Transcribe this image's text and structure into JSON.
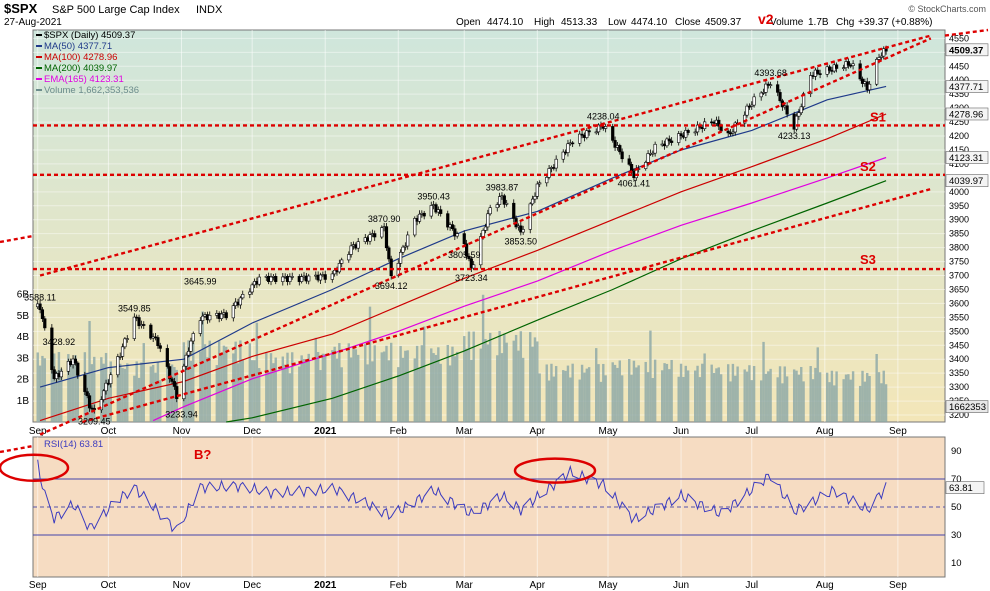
{
  "header": {
    "symbol": "$SPX",
    "name": "S&P 500 Large Cap Index",
    "exchange": "INDX",
    "date": "27-Aug-2021",
    "open_label": "Open",
    "open": "4474.10",
    "high_label": "High",
    "high": "4513.33",
    "low_label": "Low",
    "low": "4474.10",
    "close_label": "Close",
    "close": "4509.37",
    "volume_label": "Volume",
    "volume": "1.7B",
    "chg_label": "Chg",
    "chg": "+39.37 (+0.88%)",
    "watermark": "© StockCharts.com"
  },
  "legend": [
    {
      "text": "$SPX (Daily) 4509.37",
      "color": "#000000"
    },
    {
      "text": "MA(50) 4377.71",
      "color": "#1f3a8a"
    },
    {
      "text": "MA(100) 4278.96",
      "color": "#cc0000"
    },
    {
      "text": "MA(200) 4039.97",
      "color": "#006400"
    },
    {
      "text": "EMA(165) 4123.31",
      "color": "#e000e0"
    },
    {
      "text": "Volume 1,662,353,536",
      "color": "#6c8c8c"
    }
  ],
  "rsi_legend": "RSI(14) 63.81",
  "annotations": {
    "wave": "v2",
    "s1": "S1",
    "s2": "S2",
    "s3": "S3",
    "b": "B?"
  },
  "colors": {
    "price_bg": "#dfe8cf",
    "rsi_bg": "#f6dcc2",
    "support_line": "#dd0000",
    "volume": "#8aa6a6",
    "rsi_line": "#3b3bbf"
  },
  "chart_data": [
    {
      "type": "candlestick",
      "title": "$SPX S&P 500 Large Cap Index",
      "x_months": [
        "Sep",
        "Oct",
        "Nov",
        "Dec",
        "2021",
        "Feb",
        "Mar",
        "Apr",
        "May",
        "Jun",
        "Jul",
        "Aug",
        "Sep"
      ],
      "y_ticks": [
        3200,
        3250,
        3300,
        3350,
        3400,
        3450,
        3500,
        3550,
        3600,
        3650,
        3700,
        3750,
        3800,
        3850,
        3900,
        3950,
        4000,
        4050,
        4100,
        4150,
        4200,
        4250,
        4300,
        4350,
        4400,
        4450,
        4500,
        4550
      ],
      "ylim": [
        3175,
        4580
      ],
      "price_path": [
        [
          "2020-09-02",
          3588
        ],
        [
          "2020-09-08",
          3330
        ],
        [
          "2020-09-16",
          3400
        ],
        [
          "2020-09-23",
          3236
        ],
        [
          "2020-09-25",
          3209
        ],
        [
          "2020-10-05",
          3400
        ],
        [
          "2020-10-12",
          3549
        ],
        [
          "2020-10-22",
          3460
        ],
        [
          "2020-10-30",
          3270
        ],
        [
          "2020-11-04",
          3440
        ],
        [
          "2020-11-09",
          3550
        ],
        [
          "2020-11-20",
          3560
        ],
        [
          "2020-12-04",
          3690
        ],
        [
          "2020-12-21",
          3690
        ],
        [
          "2021-01-04",
          3700
        ],
        [
          "2021-01-12",
          3800
        ],
        [
          "2021-01-26",
          3870
        ],
        [
          "2021-01-29",
          3694
        ],
        [
          "2021-02-08",
          3900
        ],
        [
          "2021-02-16",
          3950
        ],
        [
          "2021-03-01",
          3810
        ],
        [
          "2021-03-04",
          3723
        ],
        [
          "2021-03-12",
          3940
        ],
        [
          "2021-03-17",
          3983
        ],
        [
          "2021-03-25",
          3853
        ],
        [
          "2021-04-01",
          4019
        ],
        [
          "2021-04-16",
          4185
        ],
        [
          "2021-04-29",
          4238
        ],
        [
          "2021-05-12",
          4061
        ],
        [
          "2021-05-21",
          4160
        ],
        [
          "2021-06-15",
          4255
        ],
        [
          "2021-06-21",
          4200
        ],
        [
          "2021-07-01",
          4320
        ],
        [
          "2021-07-09",
          4393
        ],
        [
          "2021-07-19",
          4233
        ],
        [
          "2021-07-26",
          4420
        ],
        [
          "2021-08-12",
          4460
        ],
        [
          "2021-08-19",
          4370
        ],
        [
          "2021-08-24",
          4486
        ],
        [
          "2021-08-27",
          4509
        ]
      ],
      "labels": [
        {
          "date": "2020-09-02",
          "value": "3588.11"
        },
        {
          "date": "2020-09-25",
          "value": "3209.45"
        },
        {
          "date": "2020-09-10",
          "value": "3428.92"
        },
        {
          "date": "2020-10-12",
          "value": "3549.85"
        },
        {
          "date": "2020-11-01",
          "value": "3233.94"
        },
        {
          "date": "2020-11-09",
          "value": "3645.99"
        },
        {
          "date": "2021-01-29",
          "value": "3694.12"
        },
        {
          "date": "2021-01-26",
          "value": "3870.90"
        },
        {
          "date": "2021-02-16",
          "value": "3950.43"
        },
        {
          "date": "2021-03-01",
          "value": "3805.59"
        },
        {
          "date": "2021-03-04",
          "value": "3723.34"
        },
        {
          "date": "2021-03-17",
          "value": "3983.87"
        },
        {
          "date": "2021-03-25",
          "value": "3853.50"
        },
        {
          "date": "2021-04-29",
          "value": "4238.04"
        },
        {
          "date": "2021-05-12",
          "value": "4061.41"
        },
        {
          "date": "2021-07-09",
          "value": "4393.68"
        },
        {
          "date": "2021-07-19",
          "value": "4233.13"
        }
      ],
      "price_axis_tags": [
        {
          "value": "4509.37",
          "y": 4509
        },
        {
          "value": "4377.71",
          "y": 4377
        },
        {
          "value": "4278.96",
          "y": 4279
        },
        {
          "value": "4123.31",
          "y": 4123
        },
        {
          "value": "4039.97",
          "y": 4040
        },
        {
          "value": "1662353",
          "y": 3230
        }
      ],
      "moving_averages": [
        {
          "name": "MA(50)",
          "color": "#1f3a8a",
          "points": [
            [
              "2020-09-02",
              3300
            ],
            [
              "2020-10-01",
              3370
            ],
            [
              "2020-11-02",
              3400
            ],
            [
              "2020-12-01",
              3530
            ],
            [
              "2021-01-04",
              3650
            ],
            [
              "2021-02-01",
              3760
            ],
            [
              "2021-03-01",
              3860
            ],
            [
              "2021-04-01",
              3930
            ],
            [
              "2021-05-03",
              4050
            ],
            [
              "2021-06-01",
              4150
            ],
            [
              "2021-07-01",
              4220
            ],
            [
              "2021-08-02",
              4330
            ],
            [
              "2021-08-27",
              4378
            ]
          ]
        },
        {
          "name": "MA(100)",
          "color": "#cc0000",
          "points": [
            [
              "2020-09-02",
              3180
            ],
            [
              "2020-10-01",
              3260
            ],
            [
              "2020-11-02",
              3320
            ],
            [
              "2020-12-01",
              3410
            ],
            [
              "2021-01-04",
              3490
            ],
            [
              "2021-02-01",
              3590
            ],
            [
              "2021-03-01",
              3690
            ],
            [
              "2021-04-01",
              3790
            ],
            [
              "2021-05-03",
              3900
            ],
            [
              "2021-06-01",
              4000
            ],
            [
              "2021-07-01",
              4090
            ],
            [
              "2021-08-02",
              4190
            ],
            [
              "2021-08-27",
              4279
            ]
          ]
        },
        {
          "name": "EMA(165)",
          "color": "#e000e0",
          "points": [
            [
              "2020-10-20",
              3180
            ],
            [
              "2020-11-02",
              3230
            ],
            [
              "2020-12-01",
              3330
            ],
            [
              "2021-01-04",
              3420
            ],
            [
              "2021-02-01",
              3500
            ],
            [
              "2021-03-01",
              3590
            ],
            [
              "2021-04-01",
              3680
            ],
            [
              "2021-05-03",
              3790
            ],
            [
              "2021-06-01",
              3880
            ],
            [
              "2021-07-01",
              3960
            ],
            [
              "2021-08-02",
              4050
            ],
            [
              "2021-08-27",
              4123
            ]
          ]
        },
        {
          "name": "MA(200)",
          "color": "#006400",
          "points": [
            [
              "2020-11-20",
              3175
            ],
            [
              "2020-12-01",
              3190
            ],
            [
              "2021-01-04",
              3260
            ],
            [
              "2021-02-01",
              3340
            ],
            [
              "2021-03-01",
              3430
            ],
            [
              "2021-04-01",
              3540
            ],
            [
              "2021-05-03",
              3650
            ],
            [
              "2021-06-01",
              3760
            ],
            [
              "2021-07-01",
              3860
            ],
            [
              "2021-08-02",
              3960
            ],
            [
              "2021-08-27",
              4040
            ]
          ]
        }
      ],
      "support_levels": [
        {
          "name": "S1",
          "value": 4238
        },
        {
          "name": "S2",
          "value": 4061
        },
        {
          "name": "S3",
          "value": 3723
        }
      ],
      "trendlines": [
        {
          "from": [
            "2020-09-02",
            3700
          ],
          "to": [
            "2021-09-15",
            4560
          ]
        },
        {
          "from": [
            "2020-09-02",
            3130
          ],
          "to": [
            "2021-09-15",
            4550
          ]
        },
        {
          "from": [
            "2020-09-20",
            3175
          ],
          "to": [
            "2021-09-15",
            4010
          ]
        }
      ]
    },
    {
      "type": "bar",
      "title": "Volume",
      "y_ticks": [
        "1B",
        "2B",
        "3B",
        "4B",
        "5B",
        "6B"
      ],
      "ylim": [
        0,
        6.6
      ],
      "monthly_avg": [
        [
          "2020-09",
          3.0
        ],
        [
          "2020-10",
          2.6
        ],
        [
          "2020-11",
          3.5
        ],
        [
          "2020-12",
          3.0
        ],
        [
          "2021-01",
          3.4
        ],
        [
          "2021-02",
          3.3
        ],
        [
          "2021-03",
          3.9
        ],
        [
          "2021-04",
          2.5
        ],
        [
          "2021-05",
          2.7
        ],
        [
          "2021-06",
          2.5
        ],
        [
          "2021-07",
          2.4
        ],
        [
          "2021-08",
          2.2
        ]
      ]
    },
    {
      "type": "line",
      "title": "RSI(14)",
      "y_ticks": [
        10,
        30,
        50,
        70,
        90
      ],
      "ylim": [
        0,
        100
      ],
      "reference_lines": [
        30,
        50,
        70
      ],
      "values": [
        [
          "2020-09-01",
          80
        ],
        [
          "2020-09-04",
          58
        ],
        [
          "2020-09-08",
          42
        ],
        [
          "2020-09-16",
          52
        ],
        [
          "2020-09-23",
          35
        ],
        [
          "2020-10-05",
          55
        ],
        [
          "2020-10-12",
          64
        ],
        [
          "2020-10-30",
          33
        ],
        [
          "2020-11-09",
          64
        ],
        [
          "2020-11-25",
          65
        ],
        [
          "2020-12-10",
          60
        ],
        [
          "2021-01-05",
          63
        ],
        [
          "2021-01-29",
          44
        ],
        [
          "2021-02-16",
          62
        ],
        [
          "2021-03-04",
          45
        ],
        [
          "2021-03-17",
          58
        ],
        [
          "2021-03-25",
          48
        ],
        [
          "2021-04-15",
          75
        ],
        [
          "2021-04-29",
          66
        ],
        [
          "2021-05-12",
          41
        ],
        [
          "2021-06-01",
          58
        ],
        [
          "2021-06-18",
          45
        ],
        [
          "2021-07-09",
          73
        ],
        [
          "2021-07-19",
          47
        ],
        [
          "2021-08-05",
          62
        ],
        [
          "2021-08-19",
          48
        ],
        [
          "2021-08-27",
          64
        ]
      ]
    }
  ]
}
